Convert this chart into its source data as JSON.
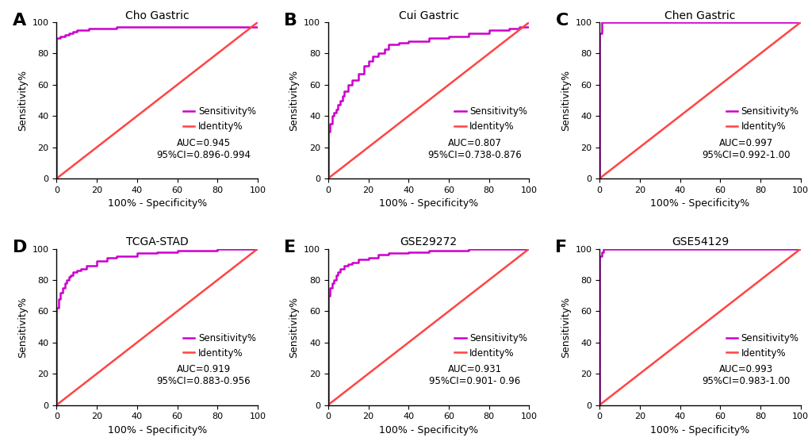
{
  "panels": [
    {
      "label": "A",
      "title": "Cho Gastric",
      "auc": "0.945",
      "ci": "0.896-0.994",
      "roc_x": [
        0,
        0,
        2,
        2,
        4,
        4,
        6,
        6,
        8,
        8,
        10,
        10,
        12,
        12,
        14,
        14,
        16,
        16,
        20,
        20,
        25,
        25,
        28,
        28,
        30,
        30,
        35,
        35,
        40,
        40,
        50,
        50,
        60,
        60,
        65,
        65,
        70,
        70,
        80,
        80,
        90,
        90,
        95,
        95,
        100
      ],
      "roc_y": [
        0,
        90,
        90,
        91,
        91,
        92,
        92,
        93,
        93,
        94,
        94,
        95,
        95,
        95,
        95,
        95,
        95,
        96,
        96,
        96,
        96,
        96,
        96,
        96,
        96,
        97,
        97,
        97,
        97,
        97,
        97,
        97,
        97,
        97,
        97,
        97,
        97,
        97,
        97,
        97,
        97,
        97,
        97,
        97,
        97
      ]
    },
    {
      "label": "B",
      "title": "Cui Gastric",
      "auc": "0.807",
      "ci": "0.738-0.876",
      "roc_x": [
        0,
        0,
        1,
        1,
        2,
        2,
        3,
        3,
        4,
        4,
        5,
        5,
        6,
        6,
        7,
        7,
        8,
        8,
        10,
        10,
        12,
        12,
        15,
        15,
        18,
        18,
        20,
        20,
        22,
        22,
        25,
        25,
        28,
        28,
        30,
        30,
        35,
        35,
        40,
        40,
        50,
        50,
        60,
        60,
        70,
        70,
        80,
        80,
        90,
        90,
        95,
        95,
        100
      ],
      "roc_y": [
        0,
        30,
        30,
        35,
        35,
        40,
        40,
        42,
        42,
        44,
        44,
        47,
        47,
        50,
        50,
        53,
        53,
        56,
        56,
        60,
        60,
        63,
        63,
        67,
        67,
        72,
        72,
        75,
        75,
        78,
        78,
        80,
        80,
        83,
        83,
        86,
        86,
        87,
        87,
        88,
        88,
        90,
        90,
        91,
        91,
        93,
        93,
        95,
        95,
        96,
        96,
        97,
        97
      ]
    },
    {
      "label": "C",
      "title": "Chen Gastric",
      "auc": "0.997",
      "ci": "0.992-1.00",
      "roc_x": [
        0,
        0,
        1,
        1,
        100
      ],
      "roc_y": [
        0,
        93,
        93,
        100,
        100
      ]
    },
    {
      "label": "D",
      "title": "TCGA-STAD",
      "auc": "0.919",
      "ci": "0.883-0.956",
      "roc_x": [
        0,
        0,
        1,
        1,
        2,
        2,
        3,
        3,
        4,
        4,
        5,
        5,
        6,
        6,
        7,
        7,
        8,
        8,
        10,
        10,
        12,
        12,
        15,
        15,
        20,
        20,
        25,
        25,
        30,
        30,
        40,
        40,
        50,
        50,
        60,
        60,
        70,
        70,
        80,
        80,
        90,
        90,
        100
      ],
      "roc_y": [
        0,
        62,
        62,
        68,
        68,
        72,
        72,
        75,
        75,
        78,
        78,
        80,
        80,
        82,
        82,
        83,
        83,
        85,
        85,
        86,
        86,
        87,
        87,
        89,
        89,
        92,
        92,
        94,
        94,
        95,
        95,
        97,
        97,
        98,
        98,
        99,
        99,
        99,
        99,
        100,
        100,
        100,
        100
      ]
    },
    {
      "label": "E",
      "title": "GSE29272",
      "auc": "0.931",
      "ci": "0.901- 0.96",
      "roc_x": [
        0,
        0,
        1,
        1,
        2,
        2,
        3,
        3,
        4,
        4,
        5,
        5,
        6,
        6,
        8,
        8,
        10,
        10,
        12,
        12,
        15,
        15,
        20,
        20,
        25,
        25,
        30,
        30,
        40,
        40,
        50,
        50,
        60,
        60,
        70,
        70,
        80,
        80,
        90,
        90,
        100
      ],
      "roc_y": [
        0,
        70,
        70,
        75,
        75,
        78,
        78,
        80,
        80,
        83,
        83,
        85,
        85,
        87,
        87,
        89,
        89,
        90,
        90,
        91,
        91,
        93,
        93,
        94,
        94,
        96,
        96,
        97,
        97,
        98,
        98,
        99,
        99,
        99,
        99,
        100,
        100,
        100,
        100,
        100,
        100
      ]
    },
    {
      "label": "F",
      "title": "GSE54129",
      "auc": "0.993",
      "ci": "0.983-1.00",
      "roc_x": [
        0,
        0,
        1,
        1,
        2,
        2,
        100
      ],
      "roc_y": [
        0,
        95,
        95,
        98,
        98,
        100,
        100
      ]
    }
  ],
  "roc_color": "#CC00CC",
  "identity_color": "#FF4444",
  "background_color": "#ffffff",
  "line_width": 1.8,
  "label_fontsize": 16,
  "title_fontsize": 10,
  "tick_fontsize": 8,
  "axis_label_fontsize": 9,
  "legend_fontsize": 8.5,
  "annotation_fontsize": 8.5
}
